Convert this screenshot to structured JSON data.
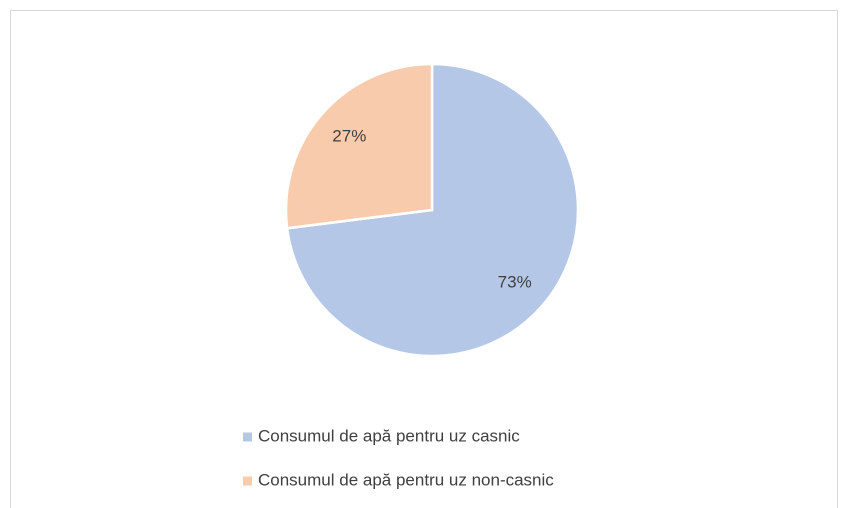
{
  "chart_data": {
    "type": "pie",
    "categories": [
      "Consumul de apă pentru uz casnic",
      "Consumul de apă pentru uz non-casnic"
    ],
    "values": [
      73,
      27
    ],
    "value_labels": [
      "73%",
      "27%"
    ],
    "colors": [
      "#b4c7e7",
      "#f8cbad"
    ],
    "legend": "bottom"
  }
}
